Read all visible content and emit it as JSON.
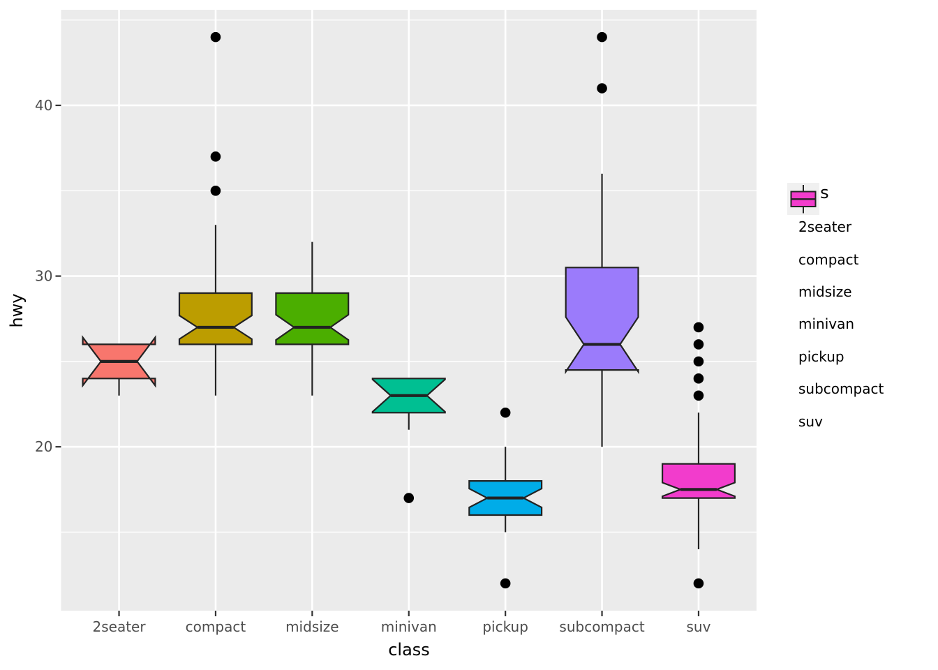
{
  "axes": {
    "x_title": "class",
    "y_title": "hwy"
  },
  "legend": {
    "title": "class",
    "items": [
      {
        "label": "2seater",
        "color": "#F8766D"
      },
      {
        "label": "compact",
        "color": "#BC9D00"
      },
      {
        "label": "midsize",
        "color": "#4BAE00"
      },
      {
        "label": "minivan",
        "color": "#00BF92"
      },
      {
        "label": "pickup",
        "color": "#00ACE8"
      },
      {
        "label": "subcompact",
        "color": "#9B7BFB"
      },
      {
        "label": "suv",
        "color": "#F23CCC"
      }
    ]
  },
  "style_colors": {
    "background": "#FFFFFF",
    "panel_bg": "#EBEBEB",
    "grid": "#FFFFFF",
    "outline": "#222222",
    "outlier": "#000000",
    "tick_label": "#4D4D4D",
    "tick_mark": "#333333",
    "legend_key_bg": "#F0F0F0"
  },
  "chart_data": {
    "type": "boxplot",
    "title": "",
    "xlabel": "class",
    "ylabel": "hwy",
    "grid": "on",
    "legend_position": "right",
    "categories": [
      "2seater",
      "compact",
      "midsize",
      "minivan",
      "pickup",
      "subcompact",
      "suv"
    ],
    "y_ticks": [
      20,
      30,
      40
    ],
    "y_minor_ticks": [
      15,
      25,
      35,
      45
    ],
    "ylim": [
      10.4,
      45.6
    ],
    "notched": true,
    "series": [
      {
        "name": "2seater",
        "color": "#F8766D",
        "whisker_low": 23,
        "q1": 24,
        "median": 25,
        "q3": 26,
        "whisker_high": 26,
        "notch_low": 23.59,
        "notch_high": 26.41,
        "outliers": []
      },
      {
        "name": "compact",
        "color": "#BC9D00",
        "whisker_low": 23,
        "q1": 26,
        "median": 27,
        "q3": 29,
        "whisker_high": 33,
        "notch_low": 26.31,
        "notch_high": 27.69,
        "outliers": [
          35,
          37,
          44
        ]
      },
      {
        "name": "midsize",
        "color": "#4BAE00",
        "whisker_low": 23,
        "q1": 26,
        "median": 27,
        "q3": 29,
        "whisker_high": 32,
        "notch_low": 26.26,
        "notch_high": 27.74,
        "outliers": []
      },
      {
        "name": "minivan",
        "color": "#00BF92",
        "whisker_low": 21,
        "q1": 22,
        "median": 23,
        "q3": 24,
        "whisker_high": 24,
        "notch_low": 22.05,
        "notch_high": 23.95,
        "outliers": [
          17
        ]
      },
      {
        "name": "pickup",
        "color": "#00ACE8",
        "whisker_low": 15,
        "q1": 16,
        "median": 17,
        "q3": 18,
        "whisker_high": 20,
        "notch_low": 16.45,
        "notch_high": 17.55,
        "outliers": [
          12,
          22
        ]
      },
      {
        "name": "subcompact",
        "color": "#9B7BFB",
        "whisker_low": 20,
        "q1": 24.5,
        "median": 26,
        "q3": 30.5,
        "whisker_high": 36,
        "notch_low": 24.4,
        "notch_high": 27.6,
        "outliers": [
          41,
          44
        ]
      },
      {
        "name": "suv",
        "color": "#F23CCC",
        "whisker_low": 14,
        "q1": 17,
        "median": 17.5,
        "q3": 19,
        "whisker_high": 22,
        "notch_low": 17.1,
        "notch_high": 17.9,
        "outliers": [
          12,
          23,
          24,
          25,
          26,
          27
        ]
      }
    ]
  }
}
